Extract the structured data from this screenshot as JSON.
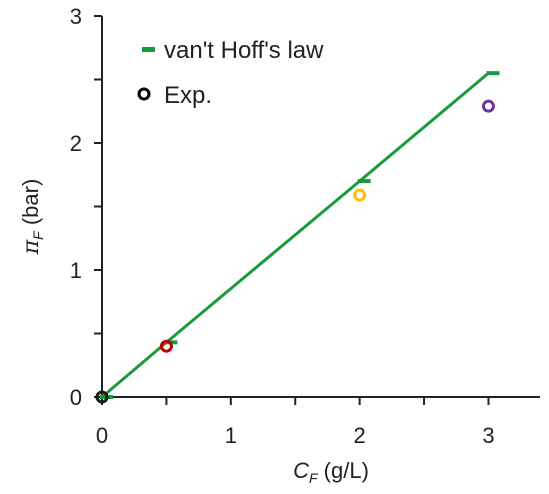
{
  "chart_data": {
    "type": "scatter",
    "xlabel": {
      "symbol": "C",
      "sub": "F",
      "unit": " (g/L)"
    },
    "ylabel": {
      "symbol": "π",
      "sub": "F",
      "unit": " (bar)"
    },
    "xlim": [
      0,
      3.4
    ],
    "ylim": [
      0,
      3
    ],
    "x_ticks": [
      0,
      1,
      2,
      3
    ],
    "x_tick_labels": [
      "0",
      "1",
      "2",
      "3"
    ],
    "x_minor_step": 0.5,
    "y_ticks": [
      0,
      1,
      2,
      3
    ],
    "y_tick_labels": [
      "0",
      "1",
      "2",
      "3"
    ],
    "y_minor_step": 0.5,
    "grid": false,
    "legend_position": "top-left",
    "colors": {
      "law": "#1a9a3a",
      "axis": "#222222",
      "exp_legend": "#000000"
    },
    "series": [
      {
        "name": "van't Hoff's law",
        "kind": "line-with-dash-markers",
        "x": [
          0,
          0.5,
          2,
          3
        ],
        "y": [
          0,
          0.43,
          1.7,
          2.55
        ]
      },
      {
        "name": "Exp.",
        "kind": "open-circles",
        "x": [
          0,
          0.5,
          2,
          3
        ],
        "y": [
          0,
          0.4,
          1.59,
          2.29
        ],
        "point_colors": [
          "#1a1a1a",
          "#c00000",
          "#ffc000",
          "#7030a0"
        ]
      }
    ]
  }
}
